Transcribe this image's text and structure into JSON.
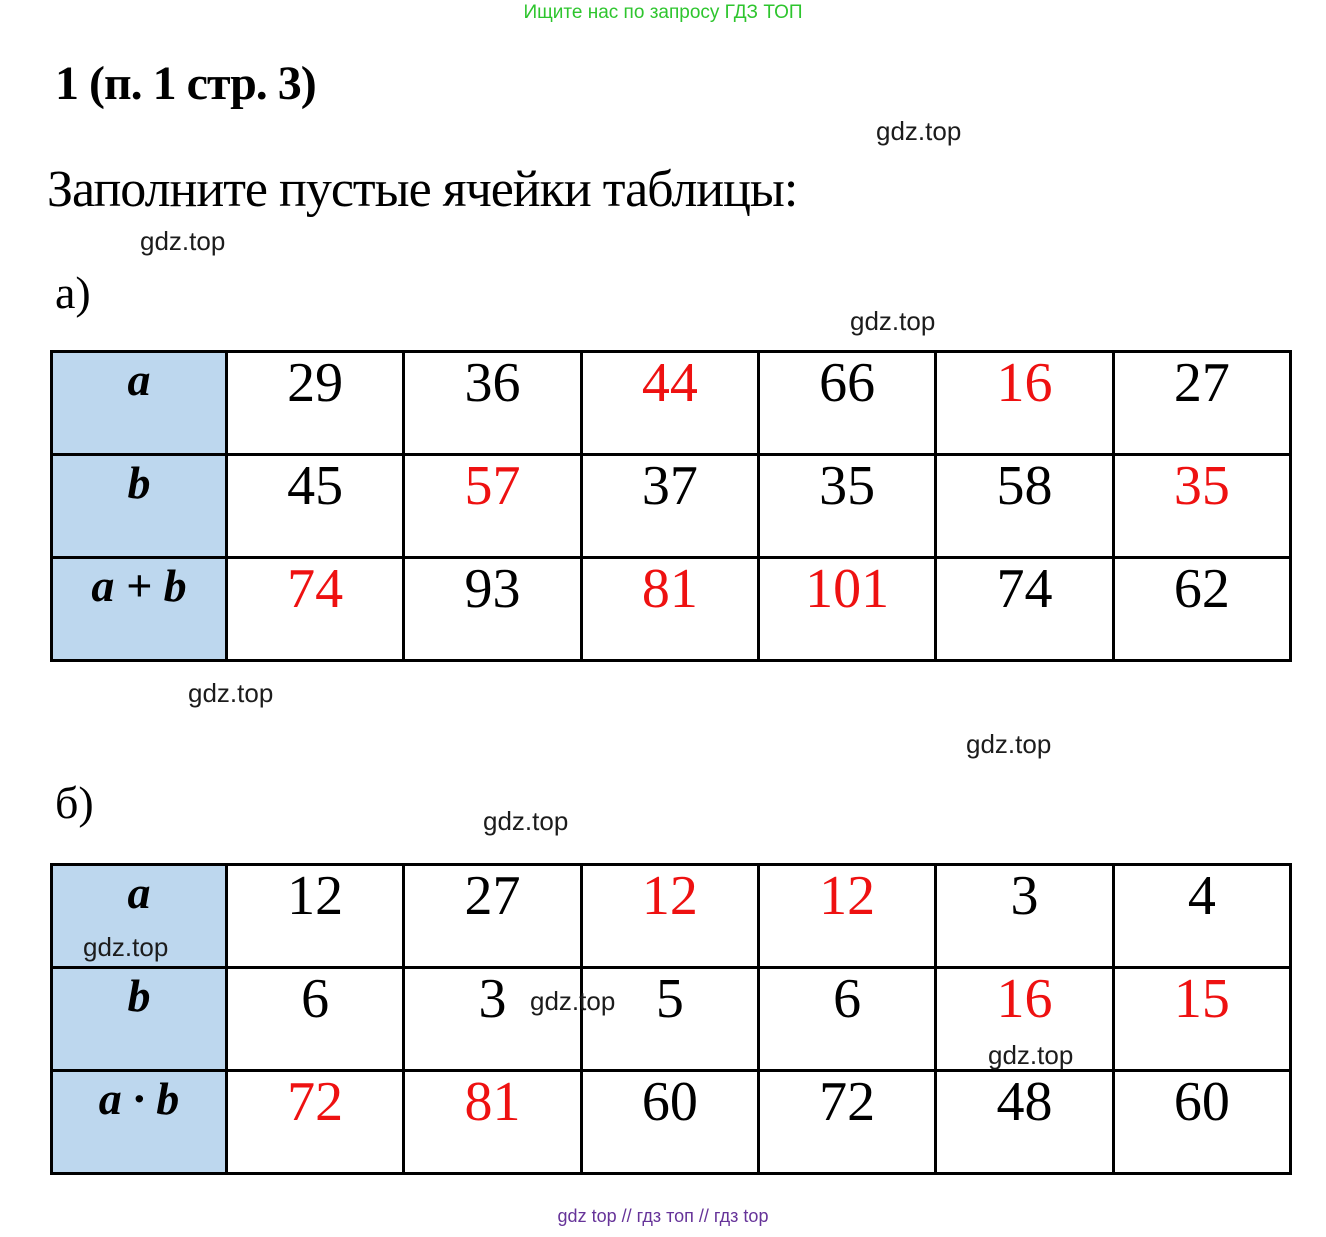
{
  "page": {
    "promo_top": "Ищите нас по запросу ГДЗ ТОП",
    "title": "1 (п. 1 стр. 3)",
    "heading": "Заполните пустые ячейки таблицы:",
    "watermark": "gdz.top",
    "footer": "gdz top  //  гдз топ  //  гдз top",
    "colors": {
      "promo_green": "#2ec52e",
      "answer_red": "#ee1111",
      "header_blue": "#bdd7ee",
      "watermark_gray": "#1c1c1c",
      "footer_purple": "#663399",
      "border_black": "#000000"
    }
  },
  "tables": [
    {
      "label": "а)",
      "row_headers": [
        "a",
        "b",
        "a + b"
      ],
      "rows": [
        [
          {
            "v": "29",
            "red": false
          },
          {
            "v": "36",
            "red": false
          },
          {
            "v": "44",
            "red": true
          },
          {
            "v": "66",
            "red": false
          },
          {
            "v": "16",
            "red": true
          },
          {
            "v": "27",
            "red": false
          }
        ],
        [
          {
            "v": "45",
            "red": false
          },
          {
            "v": "57",
            "red": true
          },
          {
            "v": "37",
            "red": false
          },
          {
            "v": "35",
            "red": false
          },
          {
            "v": "58",
            "red": false
          },
          {
            "v": "35",
            "red": true
          }
        ],
        [
          {
            "v": "74",
            "red": true
          },
          {
            "v": "93",
            "red": false
          },
          {
            "v": "81",
            "red": true
          },
          {
            "v": "101",
            "red": true
          },
          {
            "v": "74",
            "red": false
          },
          {
            "v": "62",
            "red": false
          }
        ]
      ]
    },
    {
      "label": "б)",
      "row_headers": [
        "a",
        "b",
        "a · b"
      ],
      "rows": [
        [
          {
            "v": "12",
            "red": false
          },
          {
            "v": "27",
            "red": false
          },
          {
            "v": "12",
            "red": true
          },
          {
            "v": "12",
            "red": true
          },
          {
            "v": "3",
            "red": false
          },
          {
            "v": "4",
            "red": false
          }
        ],
        [
          {
            "v": "6",
            "red": false
          },
          {
            "v": "3",
            "red": false
          },
          {
            "v": "5",
            "red": false
          },
          {
            "v": "6",
            "red": false
          },
          {
            "v": "16",
            "red": true
          },
          {
            "v": "15",
            "red": true
          }
        ],
        [
          {
            "v": "72",
            "red": true
          },
          {
            "v": "81",
            "red": true
          },
          {
            "v": "60",
            "red": false
          },
          {
            "v": "72",
            "red": false
          },
          {
            "v": "48",
            "red": false
          },
          {
            "v": "60",
            "red": false
          }
        ]
      ]
    }
  ]
}
